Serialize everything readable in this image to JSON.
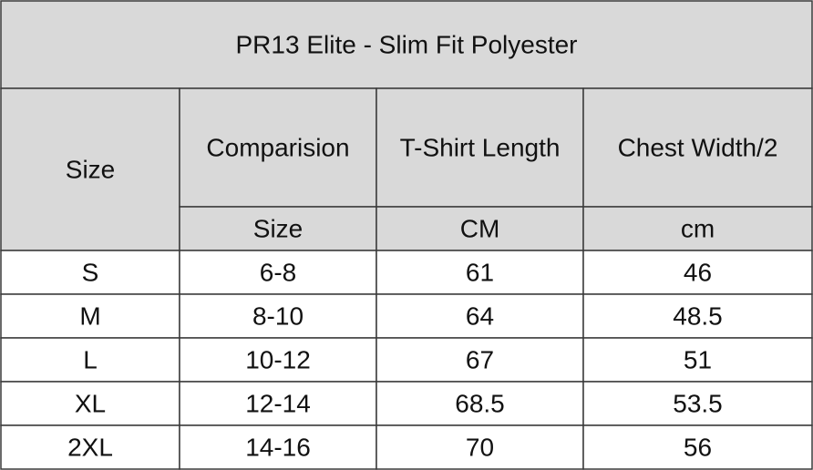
{
  "title": "PR13 Elite - Slim Fit Polyester",
  "header": [
    "Size",
    "Comparision",
    "T-Shirt Length",
    "Chest Width/2"
  ],
  "units": [
    "Size",
    "CM",
    "cm"
  ],
  "rows": [
    [
      "S",
      "6-8",
      "61",
      "46"
    ],
    [
      "M",
      "8-10",
      "64",
      "48.5"
    ],
    [
      "L",
      "10-12",
      "67",
      "51"
    ],
    [
      "XL",
      "12-14",
      "68.5",
      "53.5"
    ],
    [
      "2XL",
      "14-16",
      "70",
      "56"
    ]
  ]
}
